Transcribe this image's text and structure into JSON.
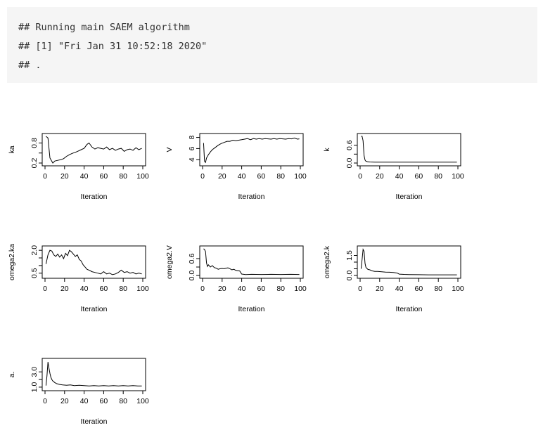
{
  "console": {
    "lines": [
      "## Running main SAEM algorithm",
      "## [1] \"Fri Jan 31 10:52:18 2020\"",
      "## ."
    ]
  },
  "chart_data": [
    {
      "type": "line",
      "ylabel": "ka",
      "xlabel": "Iteration",
      "xlim": [
        0,
        100
      ],
      "ylim": [
        0.2,
        1.0
      ],
      "xticks": [
        0,
        20,
        40,
        60,
        80,
        100
      ],
      "yticks": [
        0.2,
        0.5,
        0.8
      ],
      "yticklabels": [
        "0.2",
        "",
        "0.8"
      ],
      "x": [
        1,
        3,
        5,
        8,
        10,
        13,
        16,
        19,
        22,
        25,
        28,
        31,
        34,
        37,
        40,
        43,
        45,
        48,
        51,
        54,
        57,
        60,
        63,
        66,
        69,
        72,
        75,
        78,
        81,
        84,
        87,
        90,
        93,
        96,
        99
      ],
      "values": [
        1.0,
        0.95,
        0.35,
        0.2,
        0.26,
        0.28,
        0.3,
        0.33,
        0.4,
        0.45,
        0.49,
        0.52,
        0.56,
        0.6,
        0.64,
        0.76,
        0.8,
        0.68,
        0.62,
        0.66,
        0.64,
        0.62,
        0.68,
        0.6,
        0.64,
        0.58,
        0.62,
        0.64,
        0.55,
        0.6,
        0.62,
        0.58,
        0.66,
        0.6,
        0.64
      ]
    },
    {
      "type": "line",
      "ylabel": "V",
      "xlabel": "Iteration",
      "xlim": [
        0,
        100
      ],
      "ylim": [
        3.4,
        8.2
      ],
      "xticks": [
        0,
        20,
        40,
        60,
        80,
        100
      ],
      "yticks": [
        4,
        6,
        8
      ],
      "yticklabels": [
        "4",
        "6",
        "8"
      ],
      "x": [
        1,
        2,
        3,
        4,
        6,
        8,
        10,
        13,
        16,
        19,
        22,
        25,
        28,
        31,
        34,
        37,
        40,
        43,
        46,
        49,
        52,
        55,
        58,
        61,
        64,
        67,
        70,
        73,
        76,
        79,
        82,
        85,
        88,
        91,
        94,
        97,
        99
      ],
      "values": [
        7.0,
        3.7,
        3.5,
        4.3,
        4.9,
        5.4,
        5.8,
        6.2,
        6.6,
        6.9,
        7.1,
        7.3,
        7.3,
        7.5,
        7.4,
        7.5,
        7.6,
        7.7,
        7.8,
        7.6,
        7.8,
        7.7,
        7.8,
        7.7,
        7.8,
        7.75,
        7.7,
        7.8,
        7.7,
        7.8,
        7.75,
        7.7,
        7.8,
        7.75,
        7.9,
        7.7,
        7.75
      ]
    },
    {
      "type": "line",
      "ylabel": "k",
      "xlabel": "Iteration",
      "xlim": [
        0,
        100
      ],
      "ylim": [
        0.0,
        0.9
      ],
      "xticks": [
        0,
        20,
        40,
        60,
        80,
        100
      ],
      "yticks": [
        0.0,
        0.3,
        0.6
      ],
      "yticklabels": [
        "0.0",
        "",
        "0.6"
      ],
      "x": [
        1,
        2,
        3,
        4,
        5,
        6,
        7,
        8,
        10,
        15,
        20,
        30,
        40,
        50,
        60,
        70,
        80,
        90,
        99
      ],
      "values": [
        0.9,
        0.9,
        0.75,
        0.25,
        0.1,
        0.06,
        0.05,
        0.04,
        0.035,
        0.03,
        0.03,
        0.03,
        0.03,
        0.03,
        0.03,
        0.03,
        0.03,
        0.03,
        0.03
      ]
    },
    {
      "type": "line",
      "ylabel": "omega2.ka",
      "xlabel": "Iteration",
      "xlim": [
        0,
        100
      ],
      "ylim": [
        0.35,
        2.1
      ],
      "xticks": [
        0,
        20,
        40,
        60,
        80,
        100
      ],
      "yticks": [
        0.5,
        1.0,
        1.5,
        2.0
      ],
      "yticklabels": [
        "0.5",
        "",
        "",
        "2.0"
      ],
      "x": [
        1,
        3,
        5,
        7,
        9,
        11,
        13,
        15,
        17,
        19,
        21,
        23,
        25,
        27,
        29,
        31,
        33,
        35,
        37,
        39,
        41,
        43,
        45,
        48,
        51,
        54,
        57,
        60,
        63,
        66,
        69,
        72,
        75,
        78,
        81,
        84,
        87,
        90,
        93,
        96,
        99
      ],
      "values": [
        1.1,
        1.7,
        2.0,
        1.95,
        1.7,
        1.6,
        1.75,
        1.55,
        1.7,
        1.45,
        1.8,
        1.65,
        2.0,
        1.9,
        1.75,
        1.6,
        1.7,
        1.4,
        1.3,
        1.05,
        0.9,
        0.75,
        0.7,
        0.6,
        0.55,
        0.5,
        0.45,
        0.6,
        0.45,
        0.5,
        0.4,
        0.45,
        0.55,
        0.7,
        0.55,
        0.6,
        0.5,
        0.55,
        0.45,
        0.5,
        0.45
      ]
    },
    {
      "type": "line",
      "ylabel": "omega2.V",
      "xlabel": "Iteration",
      "xlim": [
        0,
        100
      ],
      "ylim": [
        0.0,
        0.95
      ],
      "xticks": [
        0,
        20,
        40,
        60,
        80,
        100
      ],
      "yticks": [
        0.0,
        0.3,
        0.6
      ],
      "yticklabels": [
        "0.0",
        "",
        "0.6"
      ],
      "x": [
        1,
        2,
        3,
        4,
        5,
        6,
        8,
        10,
        12,
        14,
        16,
        18,
        20,
        22,
        24,
        26,
        28,
        30,
        32,
        34,
        36,
        38,
        40,
        42,
        44,
        50,
        60,
        70,
        80,
        90,
        99
      ],
      "values": [
        0.95,
        0.92,
        0.85,
        0.45,
        0.32,
        0.38,
        0.3,
        0.35,
        0.28,
        0.26,
        0.22,
        0.24,
        0.25,
        0.24,
        0.26,
        0.27,
        0.24,
        0.2,
        0.22,
        0.18,
        0.17,
        0.16,
        0.05,
        0.04,
        0.03,
        0.04,
        0.035,
        0.04,
        0.035,
        0.04,
        0.035
      ]
    },
    {
      "type": "line",
      "ylabel": "omega2.k",
      "xlabel": "Iteration",
      "xlim": [
        0,
        100
      ],
      "ylim": [
        0.0,
        2.0
      ],
      "xticks": [
        0,
        20,
        40,
        60,
        80,
        100
      ],
      "yticks": [
        0.0,
        0.5,
        1.0,
        1.5
      ],
      "yticklabels": [
        "0.0",
        "",
        "",
        "1.5"
      ],
      "x": [
        1,
        2,
        3,
        4,
        5,
        6,
        8,
        10,
        12,
        15,
        18,
        22,
        26,
        30,
        34,
        38,
        40,
        45,
        50,
        60,
        70,
        80,
        90,
        99
      ],
      "values": [
        0.5,
        1.2,
        1.95,
        1.8,
        0.9,
        0.6,
        0.45,
        0.42,
        0.35,
        0.3,
        0.3,
        0.28,
        0.25,
        0.24,
        0.22,
        0.18,
        0.1,
        0.08,
        0.07,
        0.06,
        0.05,
        0.05,
        0.05,
        0.05
      ]
    },
    {
      "type": "line",
      "ylabel": "a.",
      "xlabel": "Iteration",
      "xlim": [
        0,
        100
      ],
      "ylim": [
        0.9,
        4.4
      ],
      "xticks": [
        0,
        20,
        40,
        60,
        80,
        100
      ],
      "yticks": [
        1.0,
        2.0,
        3.0
      ],
      "yticklabels": [
        "1.0",
        "",
        "3.0"
      ],
      "x": [
        1,
        2,
        3,
        4,
        5,
        6,
        7,
        8,
        10,
        12,
        15,
        18,
        22,
        26,
        30,
        35,
        40,
        45,
        50,
        55,
        60,
        65,
        70,
        75,
        80,
        85,
        90,
        95,
        99
      ],
      "values": [
        1.2,
        2.5,
        4.3,
        3.5,
        2.8,
        2.3,
        2.0,
        1.8,
        1.6,
        1.45,
        1.35,
        1.3,
        1.25,
        1.3,
        1.2,
        1.25,
        1.2,
        1.15,
        1.2,
        1.15,
        1.2,
        1.15,
        1.2,
        1.15,
        1.2,
        1.15,
        1.2,
        1.15,
        1.15
      ]
    }
  ]
}
